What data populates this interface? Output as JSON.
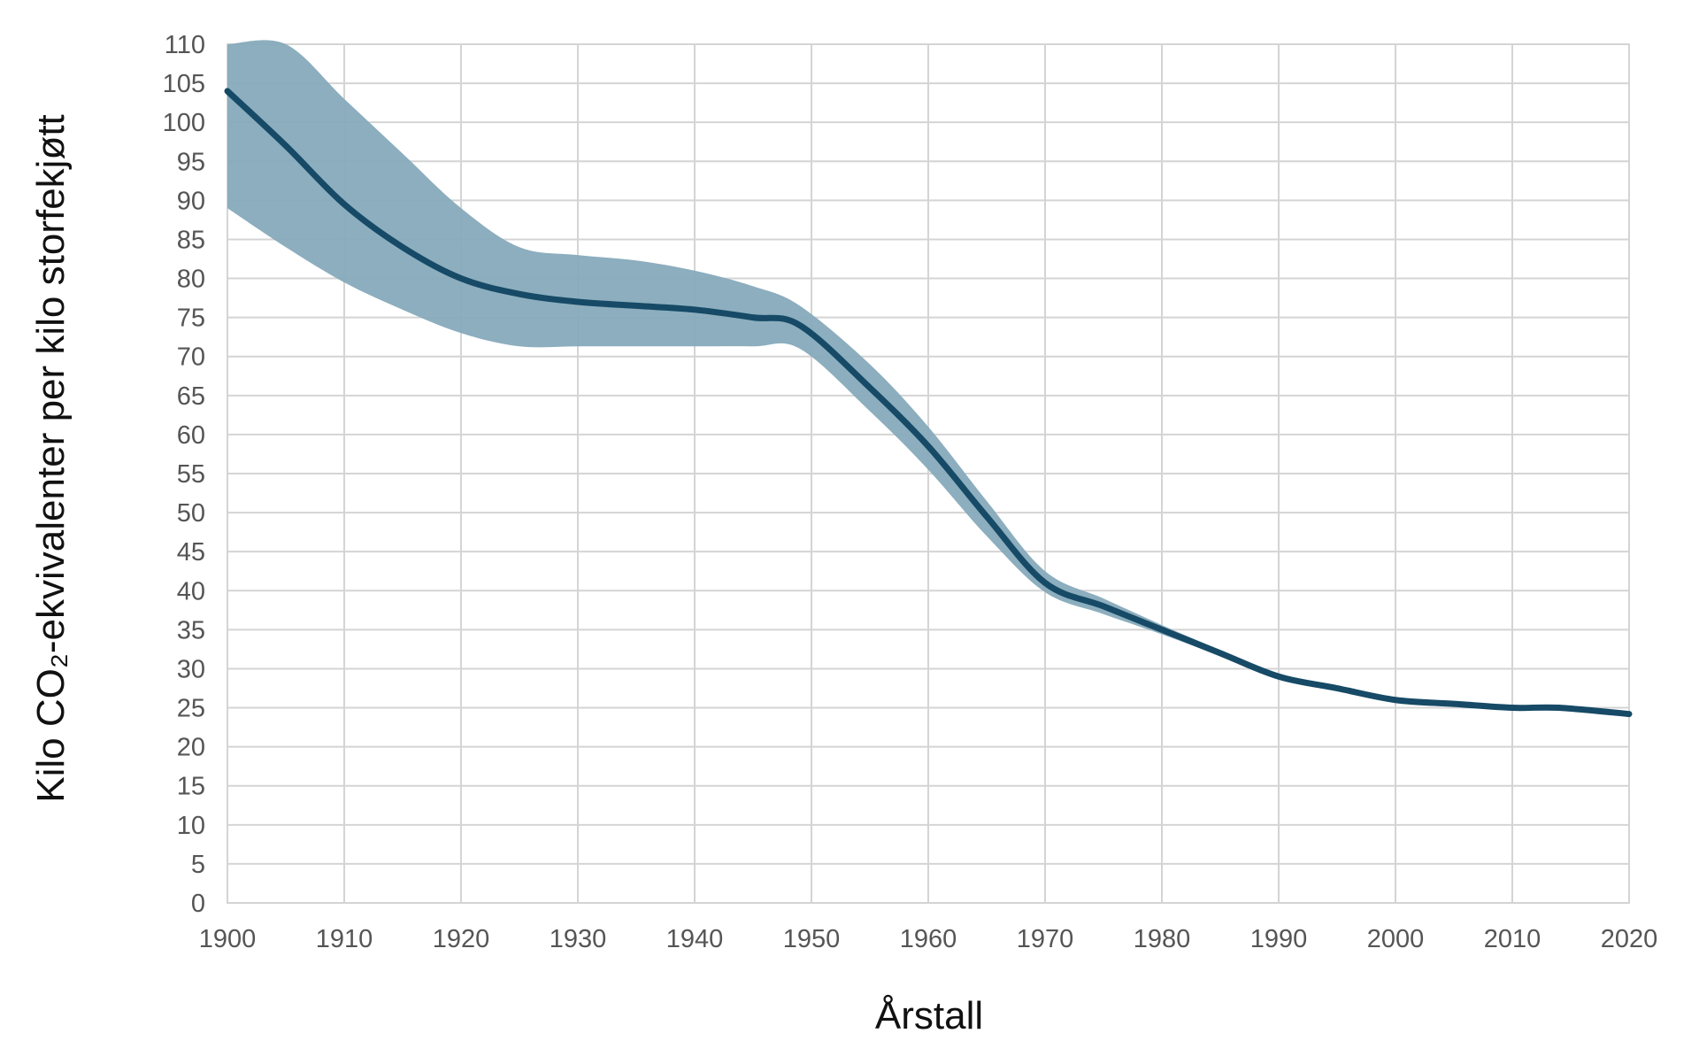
{
  "chart_data": {
    "type": "line",
    "xlabel": "Årstall",
    "ylabel": "Kilo CO₂-ekvivalenter per kilo storfekjøtt",
    "xlim": [
      1900,
      2020
    ],
    "ylim": [
      0,
      110
    ],
    "x_ticks": [
      1900,
      1910,
      1920,
      1930,
      1940,
      1950,
      1960,
      1970,
      1980,
      1990,
      2000,
      2010,
      2020
    ],
    "y_ticks": [
      0,
      5,
      10,
      15,
      20,
      25,
      30,
      35,
      40,
      45,
      50,
      55,
      60,
      65,
      70,
      75,
      80,
      85,
      90,
      95,
      100,
      105,
      110
    ],
    "grid": true,
    "series": [
      {
        "x": [
          1900,
          1905,
          1910,
          1915,
          1920,
          1925,
          1930,
          1935,
          1940,
          1945,
          1949,
          1955,
          1960,
          1965,
          1970,
          1975,
          1980,
          1985,
          1990,
          1995,
          2000,
          2005,
          2010,
          2014,
          2020
        ],
        "y": [
          104,
          97,
          89.5,
          84,
          80,
          78,
          77,
          76.5,
          76,
          75,
          74,
          66,
          58.5,
          49.5,
          41,
          38,
          35,
          32,
          29,
          27.5,
          26,
          25.5,
          25,
          25,
          24.2
        ]
      }
    ],
    "band": {
      "x": [
        1900,
        1905,
        1910,
        1915,
        1920,
        1925,
        1930,
        1935,
        1940,
        1945,
        1949,
        1955,
        1960,
        1965,
        1970,
        1975,
        1980,
        1985,
        1990,
        1995,
        2000,
        2005,
        2010,
        2014,
        2020
      ],
      "upper": [
        113,
        113,
        103,
        96,
        89,
        84,
        83,
        82.3,
        81,
        79,
        76.5,
        69,
        61,
        51.5,
        42.5,
        39,
        35.6,
        32.4,
        29.3,
        27.6,
        26.1,
        25.6,
        25.1,
        25.1,
        24.3
      ],
      "lower": [
        89,
        84,
        79.5,
        76,
        73,
        71.3,
        71.3,
        71.3,
        71.3,
        71.3,
        71,
        63,
        55.5,
        47,
        39.8,
        37,
        34.4,
        31.6,
        28.7,
        27.4,
        25.9,
        25.4,
        24.9,
        24.9,
        24.1
      ]
    },
    "colors": {
      "line": "#164a66",
      "band": "#86aabb",
      "grid": "#d4d4d4"
    }
  }
}
